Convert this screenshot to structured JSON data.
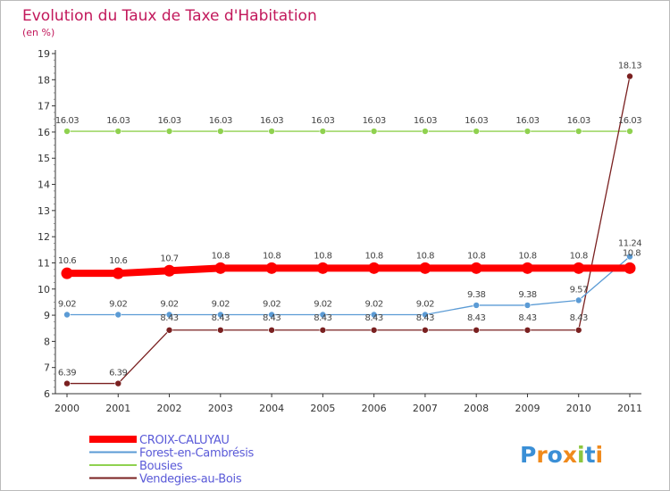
{
  "chart_data": {
    "type": "line",
    "title": "Evolution du Taux de Taxe d'Habitation",
    "subtitle": "(en %)",
    "xlabel": "",
    "ylabel": "",
    "ylim": [
      6,
      19
    ],
    "yticks": [
      "6",
      "7",
      "8",
      "9",
      "10",
      "11",
      "12",
      "13",
      "14",
      "15",
      "16",
      "17",
      "18",
      "19"
    ],
    "categories": [
      "2000",
      "2001",
      "2002",
      "2003",
      "2004",
      "2005",
      "2006",
      "2007",
      "2008",
      "2009",
      "2010",
      "2011"
    ],
    "grid": false,
    "legend_position": "bottom-left",
    "series": [
      {
        "name": "CROIX-CALUYAU",
        "color": "#ff0000",
        "values": [
          10.6,
          10.6,
          10.7,
          10.8,
          10.8,
          10.8,
          10.8,
          10.8,
          10.8,
          10.8,
          10.8,
          10.8
        ],
        "labels": [
          "10.6",
          "10.6",
          "10.7",
          "10.8",
          "10.8",
          "10.8",
          "10.8",
          "10.8",
          "10.8",
          "10.8",
          "10.8",
          "10.8"
        ]
      },
      {
        "name": "Forest-en-Cambrésis",
        "color": "#5b9bd5",
        "values": [
          9.02,
          9.02,
          9.02,
          9.02,
          9.02,
          9.02,
          9.02,
          9.02,
          9.38,
          9.38,
          9.57,
          11.24
        ],
        "labels": [
          "9.02",
          "9.02",
          "9.02",
          "9.02",
          "9.02",
          "9.02",
          "9.02",
          "9.02",
          "9.38",
          "9.38",
          "9.57",
          "11.24"
        ]
      },
      {
        "name": "Bousies",
        "color": "#8fd14f",
        "values": [
          16.03,
          16.03,
          16.03,
          16.03,
          16.03,
          16.03,
          16.03,
          16.03,
          16.03,
          16.03,
          16.03,
          16.03
        ],
        "labels": [
          "16.03",
          "16.03",
          "16.03",
          "16.03",
          "16.03",
          "16.03",
          "16.03",
          "16.03",
          "16.03",
          "16.03",
          "16.03",
          "16.03"
        ]
      },
      {
        "name": "Vendegies-au-Bois",
        "color": "#7a2020",
        "values": [
          6.39,
          6.39,
          8.43,
          8.43,
          8.43,
          8.43,
          8.43,
          8.43,
          8.43,
          8.43,
          8.43,
          18.13
        ],
        "labels": [
          "6.39",
          "6.39",
          "8.43",
          "8.43",
          "8.43",
          "8.43",
          "8.43",
          "8.43",
          "8.43",
          "8.43",
          "8.43",
          "18.13"
        ]
      }
    ]
  },
  "logo": {
    "text": "Proxiti",
    "colors": [
      "#3a8fd6",
      "#f08a1c",
      "#3a8fd6",
      "#f08a1c",
      "#8cc63f",
      "#3a8fd6",
      "#f08a1c"
    ]
  },
  "colors": {
    "title": "#c2185b",
    "axis": "#333333",
    "background": "#ffffff"
  }
}
